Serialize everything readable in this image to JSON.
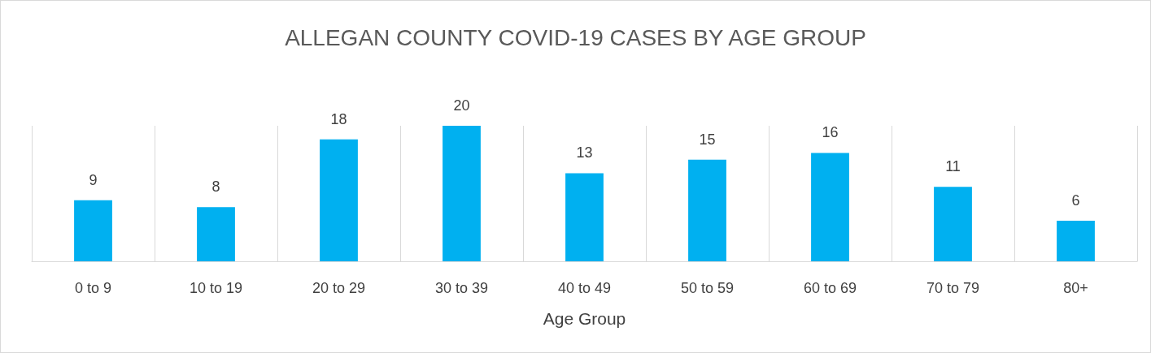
{
  "chart_data": {
    "type": "bar",
    "title": "ALLEGAN COUNTY COVID-19 CASES BY AGE GROUP",
    "xlabel": "Age Group",
    "categories": [
      "0 to 9",
      "10 to 19",
      "20 to 29",
      "30 to 39",
      "40 to 49",
      "50 to 59",
      "60 to 69",
      "70 to 79",
      "80+"
    ],
    "values": [
      9,
      8,
      18,
      20,
      13,
      15,
      16,
      11,
      6
    ],
    "color": "#00b0f0",
    "data_labels": true,
    "grid": "x"
  }
}
